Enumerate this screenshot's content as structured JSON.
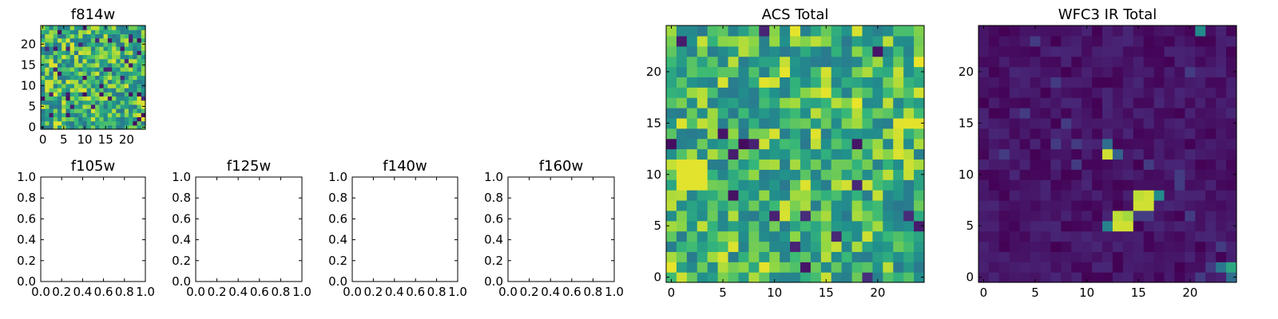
{
  "chart_data": [
    {
      "type": "heatmap",
      "title": "f814w",
      "xlim": [
        -0.5,
        24.5
      ],
      "ylim": [
        -0.5,
        24.5
      ],
      "xticks": [
        0,
        5,
        10,
        15,
        20
      ],
      "yticks": [
        0,
        5,
        10,
        15,
        20
      ],
      "grid": false,
      "colormap": "viridis",
      "seed": 814,
      "base": 0.72,
      "spread": 0.25,
      "hot_blocks": [
        [
          1,
          10,
          2,
          2,
          0.95
        ]
      ]
    },
    {
      "type": "heatmap",
      "title": "f105w",
      "xlim": [
        0,
        1
      ],
      "ylim": [
        0,
        1
      ],
      "xticks": [
        "0.0",
        "0.2",
        "0.4",
        "0.6",
        "0.8",
        "1.0"
      ],
      "yticks": [
        "0.0",
        "0.2",
        "0.4",
        "0.6",
        "0.8",
        "1.0"
      ],
      "grid": false,
      "empty": true
    },
    {
      "type": "heatmap",
      "title": "f125w",
      "xlim": [
        0,
        1
      ],
      "ylim": [
        0,
        1
      ],
      "xticks": [
        "0.0",
        "0.2",
        "0.4",
        "0.6",
        "0.8",
        "1.0"
      ],
      "yticks": [
        "0.0",
        "0.2",
        "0.4",
        "0.6",
        "0.8",
        "1.0"
      ],
      "grid": false,
      "empty": true
    },
    {
      "type": "heatmap",
      "title": "f140w",
      "xlim": [
        0,
        1
      ],
      "ylim": [
        0,
        1
      ],
      "xticks": [
        "0.0",
        "0.2",
        "0.4",
        "0.6",
        "0.8",
        "1.0"
      ],
      "yticks": [
        "0.0",
        "0.2",
        "0.4",
        "0.6",
        "0.8",
        "1.0"
      ],
      "grid": false,
      "empty": true
    },
    {
      "type": "heatmap",
      "title": "f160w",
      "xlim": [
        0,
        1
      ],
      "ylim": [
        0,
        1
      ],
      "xticks": [
        "0.0",
        "0.2",
        "0.4",
        "0.6",
        "0.8",
        "1.0"
      ],
      "yticks": [
        "0.0",
        "0.2",
        "0.4",
        "0.6",
        "0.8",
        "1.0"
      ],
      "grid": false,
      "empty": true
    },
    {
      "type": "heatmap",
      "title": "ACS Total",
      "xlim": [
        -0.5,
        24.5
      ],
      "ylim": [
        -0.5,
        24.5
      ],
      "xticks": [
        0,
        5,
        10,
        15,
        20
      ],
      "yticks": [
        0,
        5,
        10,
        15,
        20
      ],
      "grid": false,
      "colormap": "viridis",
      "seed": 4242,
      "base": 0.74,
      "spread": 0.24,
      "hot_blocks": [
        [
          1,
          9,
          3,
          3,
          0.97
        ]
      ]
    },
    {
      "type": "heatmap",
      "title": "WFC3 IR Total",
      "xlim": [
        -0.5,
        24.5
      ],
      "ylim": [
        -0.5,
        24.5
      ],
      "xticks": [
        0,
        5,
        10,
        15,
        20
      ],
      "yticks": [
        0,
        5,
        10,
        15,
        20
      ],
      "grid": false,
      "colormap": "viridis",
      "seed": 2222,
      "base": 0.07,
      "spread": 0.07,
      "hot_pixels": [
        [
          13,
          5,
          0.95
        ],
        [
          14,
          5,
          0.95
        ],
        [
          13,
          6,
          0.93
        ],
        [
          14,
          6,
          0.9
        ],
        [
          12,
          5,
          0.55
        ],
        [
          15,
          7,
          0.95
        ],
        [
          16,
          7,
          0.95
        ],
        [
          15,
          8,
          0.93
        ],
        [
          16,
          8,
          0.95
        ],
        [
          17,
          8,
          0.6
        ],
        [
          12,
          12,
          0.95
        ],
        [
          12,
          13,
          0.45
        ],
        [
          13,
          12,
          0.4
        ],
        [
          21,
          24,
          0.6
        ],
        [
          23,
          1,
          0.5
        ],
        [
          24,
          1,
          0.7
        ],
        [
          24,
          0,
          0.45
        ]
      ]
    }
  ]
}
